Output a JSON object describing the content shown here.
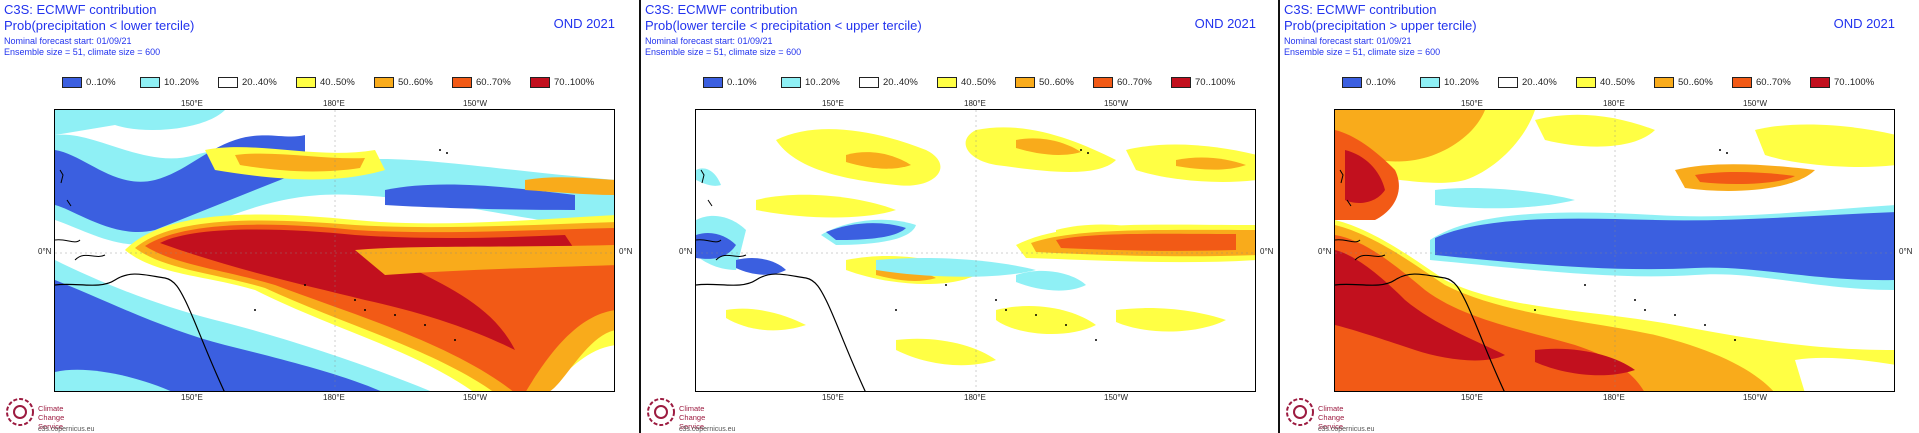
{
  "colors": {
    "bin_0_10": "#3b5fe0",
    "bin_10_20": "#8ff0f5",
    "bin_20_40": "#ffffff",
    "bin_40_50": "#ffff44",
    "bin_50_60": "#f9ab1b",
    "bin_60_70": "#f25a16",
    "bin_70_100": "#c2101e",
    "title_text": "#2233ee",
    "logo": "#9c1b40"
  },
  "legend": [
    "0..10%",
    "10..20%",
    "20..40%",
    "40..50%",
    "50..60%",
    "60..70%",
    "70..100%"
  ],
  "ticks": {
    "top": [
      "150°E",
      "180°E",
      "150°W"
    ],
    "bottom": [
      "150°E",
      "180°E",
      "150°W"
    ],
    "left": "0°N",
    "right": "0°N"
  },
  "logo": {
    "line1": "Climate",
    "line2": "Change Service",
    "line3": "c3s.copernicus.eu"
  },
  "panels": [
    {
      "title": "C3S: ECMWF contribution",
      "subtitle": "Prob(precipitation < lower tercile)",
      "forecast_start": "Nominal forecast start: 01/09/21",
      "ensemble": "Ensemble size = 51, climate size = 600",
      "season": "OND 2021",
      "icon": "map-below-tercile"
    },
    {
      "title": "C3S: ECMWF contribution",
      "subtitle": "Prob(lower tercile < precipitation < upper tercile)",
      "forecast_start": "Nominal forecast start: 01/09/21",
      "ensemble": "Ensemble size = 51, climate size = 600",
      "season": "OND 2021",
      "icon": "map-middle-tercile"
    },
    {
      "title": "C3S: ECMWF contribution",
      "subtitle": "Prob(precipitation > upper tercile)",
      "forecast_start": "Nominal forecast start: 01/09/21",
      "ensemble": "Ensemble size = 51, climate size = 600",
      "season": "OND 2021",
      "icon": "map-above-tercile"
    }
  ]
}
